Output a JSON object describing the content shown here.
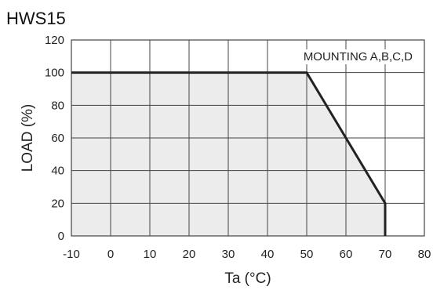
{
  "chart_data": {
    "type": "area",
    "title": "HWS15",
    "xlabel": "Ta (°C)",
    "ylabel": "LOAD (%)",
    "xlim": [
      -10,
      80
    ],
    "ylim": [
      0,
      120
    ],
    "x_ticks": [
      -10,
      0,
      10,
      20,
      30,
      40,
      50,
      60,
      70,
      80
    ],
    "y_ticks": [
      0,
      20,
      40,
      60,
      80,
      100,
      120
    ],
    "grid": true,
    "annotation": "MOUNTING A,B,C,D",
    "series": [
      {
        "x": [
          -10,
          50,
          70,
          70
        ],
        "y": [
          100,
          100,
          20,
          0
        ]
      }
    ],
    "fill_color": "#ececec",
    "line_color": "#222222",
    "grid_color": "#444444"
  }
}
